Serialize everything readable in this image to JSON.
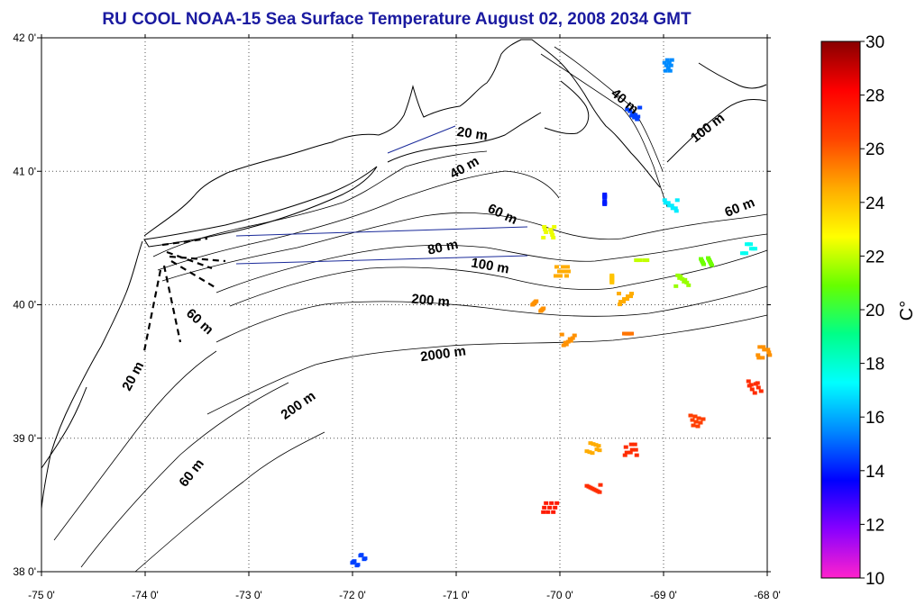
{
  "title": "RU COOL  NOAA-15 Sea Surface Temperature August 02, 2008 2034 GMT",
  "map": {
    "lon_range": [
      -75,
      -68
    ],
    "lat_range": [
      38,
      42
    ],
    "lon_ticks": [
      -75,
      -74,
      -73,
      -72,
      -71,
      -70,
      -69,
      -68
    ],
    "lat_ticks": [
      38,
      39,
      40,
      41,
      42
    ],
    "lon_tick_labels": [
      "-75 0'",
      "-74 0'",
      "-73 0'",
      "-72 0'",
      "-71 0'",
      "-70 0'",
      "-69 0'",
      "-68 0'"
    ],
    "lat_tick_labels": [
      "38 0'",
      "39 0'",
      "40 0'",
      "41 0'",
      "42 0'"
    ],
    "grid": true
  },
  "contour_labels": [
    {
      "text": "20 m",
      "lon": -70.85,
      "lat": 41.25,
      "angle": 8
    },
    {
      "text": "40 m",
      "lon": -70.9,
      "lat": 41.0,
      "angle": -30
    },
    {
      "text": "40 m",
      "lon": -69.4,
      "lat": 41.5,
      "angle": 40
    },
    {
      "text": "100 m",
      "lon": -68.55,
      "lat": 41.3,
      "angle": -38
    },
    {
      "text": "60 m",
      "lon": -70.57,
      "lat": 40.65,
      "angle": 25
    },
    {
      "text": "60 m",
      "lon": -68.25,
      "lat": 40.7,
      "angle": -22
    },
    {
      "text": "80 m",
      "lon": -71.12,
      "lat": 40.4,
      "angle": -12
    },
    {
      "text": "100 m",
      "lon": -70.68,
      "lat": 40.26,
      "angle": 10
    },
    {
      "text": "200 m",
      "lon": -71.25,
      "lat": 40.0,
      "angle": 5
    },
    {
      "text": "2000 m",
      "lon": -71.12,
      "lat": 39.6,
      "angle": -8
    },
    {
      "text": "60 m",
      "lon": -73.5,
      "lat": 39.85,
      "angle": 42
    },
    {
      "text": "20 m",
      "lon": -74.08,
      "lat": 39.45,
      "angle": -62
    },
    {
      "text": "200 m",
      "lon": -72.5,
      "lat": 39.22,
      "angle": -35
    },
    {
      "text": "60 m",
      "lon": -73.52,
      "lat": 38.72,
      "angle": -52
    }
  ],
  "colorbar": {
    "min": 10,
    "max": 30,
    "ticks": [
      10,
      12,
      14,
      16,
      18,
      20,
      22,
      24,
      26,
      28,
      30
    ],
    "unit": "C°",
    "colors": [
      "#ff22cc",
      "#8800ff",
      "#0000ff",
      "#0088ff",
      "#00ffff",
      "#00ff88",
      "#66ff00",
      "#ffff00",
      "#ffaa00",
      "#ff4400",
      "#ff0000",
      "#880000"
    ]
  },
  "sst_patches": [
    {
      "lon": -70.12,
      "lat": 40.55,
      "temp": 22.5
    },
    {
      "lon": -70.0,
      "lat": 40.25,
      "temp": 24.5
    },
    {
      "lon": -69.45,
      "lat": 40.2,
      "temp": 24.0
    },
    {
      "lon": -69.4,
      "lat": 40.05,
      "temp": 24.5
    },
    {
      "lon": -70.25,
      "lat": 40.0,
      "temp": 25.0
    },
    {
      "lon": -69.95,
      "lat": 39.75,
      "temp": 25.0
    },
    {
      "lon": -69.4,
      "lat": 39.75,
      "temp": 25.5
    },
    {
      "lon": -68.7,
      "lat": 39.15,
      "temp": 26.5
    },
    {
      "lon": -69.7,
      "lat": 38.95,
      "temp": 24.5
    },
    {
      "lon": -69.35,
      "lat": 38.92,
      "temp": 27.0
    },
    {
      "lon": -69.7,
      "lat": 38.65,
      "temp": 27.0
    },
    {
      "lon": -70.12,
      "lat": 38.48,
      "temp": 27.5
    },
    {
      "lon": -68.05,
      "lat": 39.65,
      "temp": 25.0
    },
    {
      "lon": -68.15,
      "lat": 39.4,
      "temp": 27.0
    },
    {
      "lon": -69.32,
      "lat": 41.45,
      "temp": 14.5
    },
    {
      "lon": -68.95,
      "lat": 41.8,
      "temp": 15.5
    },
    {
      "lon": -68.2,
      "lat": 40.42,
      "temp": 17.5
    },
    {
      "lon": -68.6,
      "lat": 40.33,
      "temp": 21.0
    },
    {
      "lon": -68.95,
      "lat": 40.75,
      "temp": 17.0
    },
    {
      "lon": -69.52,
      "lat": 40.8,
      "temp": 14.0
    },
    {
      "lon": -71.97,
      "lat": 38.1,
      "temp": 14.5
    },
    {
      "lon": -69.25,
      "lat": 40.3,
      "temp": 22.0
    },
    {
      "lon": -68.85,
      "lat": 40.2,
      "temp": 21.5
    }
  ]
}
